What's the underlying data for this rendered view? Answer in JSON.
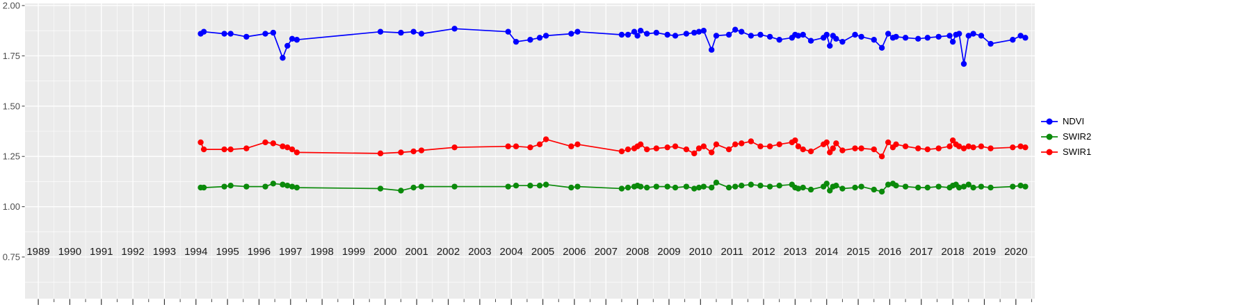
{
  "chart_data": {
    "type": "line",
    "title": "",
    "xlabel": "",
    "ylabel": "",
    "grid": true,
    "panel_bg": "#EBEBEB",
    "grid_color": "#FFFFFF",
    "tick_color": "#333333",
    "x_label_color": "#1a1a1a",
    "y_label_color": "#4d4d4d",
    "legend_position": "right",
    "xlim": [
      1988.58,
      2020.6
    ],
    "ylim": [
      0.5428,
      2.0104
    ],
    "x_ticks": [
      1989,
      1990,
      1991,
      1992,
      1993,
      1994,
      1995,
      1996,
      1997,
      1998,
      1999,
      2000,
      2001,
      2002,
      2003,
      2004,
      2005,
      2006,
      2007,
      2008,
      2009,
      2010,
      2011,
      2012,
      2013,
      2014,
      2015,
      2016,
      2017,
      2018,
      2019,
      2020
    ],
    "y_ticks": [
      {
        "v": 2.0,
        "label": "2.00"
      },
      {
        "v": 1.75,
        "label": "1.75"
      },
      {
        "v": 1.5,
        "label": "1.50"
      },
      {
        "v": 1.25,
        "label": "1.25"
      },
      {
        "v": 1.0,
        "label": "1.00"
      },
      {
        "v": 0.75,
        "label": "0.75"
      }
    ],
    "y_minor_ticks": [
      0.625,
      0.875,
      1.125,
      1.375,
      1.625,
      1.875
    ],
    "x": [
      1994.15,
      1994.25,
      1994.9,
      1995.1,
      1995.6,
      1996.2,
      1996.45,
      1996.75,
      1996.9,
      1997.05,
      1997.2,
      1999.85,
      2000.5,
      2000.9,
      2001.15,
      2002.2,
      2003.9,
      2004.15,
      2004.6,
      2004.9,
      2005.1,
      2005.9,
      2006.1,
      2007.5,
      2007.7,
      2007.9,
      2008.0,
      2008.1,
      2008.3,
      2008.6,
      2008.95,
      2009.2,
      2009.55,
      2009.8,
      2009.95,
      2010.1,
      2010.35,
      2010.5,
      2010.9,
      2011.1,
      2011.3,
      2011.6,
      2011.9,
      2012.2,
      2012.5,
      2012.9,
      2013.0,
      2013.1,
      2013.25,
      2013.5,
      2013.9,
      2014.0,
      2014.1,
      2014.2,
      2014.3,
      2014.5,
      2014.9,
      2015.1,
      2015.5,
      2015.75,
      2015.95,
      2016.1,
      2016.2,
      2016.5,
      2016.9,
      2017.2,
      2017.55,
      2017.9,
      2018.0,
      2018.1,
      2018.2,
      2018.35,
      2018.5,
      2018.65,
      2018.9,
      2019.2,
      2019.9,
      2020.15,
      2020.3
    ],
    "series": [
      {
        "name": "NDVI",
        "color": "#0000FF",
        "values": [
          1.86,
          1.87,
          1.86,
          1.86,
          1.845,
          1.86,
          1.865,
          1.74,
          1.8,
          1.835,
          1.83,
          1.87,
          1.865,
          1.87,
          1.86,
          1.885,
          1.87,
          1.82,
          1.83,
          1.84,
          1.85,
          1.86,
          1.87,
          1.855,
          1.855,
          1.87,
          1.85,
          1.875,
          1.86,
          1.865,
          1.855,
          1.85,
          1.86,
          1.865,
          1.87,
          1.875,
          1.78,
          1.85,
          1.855,
          1.88,
          1.87,
          1.85,
          1.855,
          1.845,
          1.83,
          1.84,
          1.855,
          1.85,
          1.855,
          1.825,
          1.84,
          1.855,
          1.8,
          1.85,
          1.835,
          1.82,
          1.855,
          1.845,
          1.83,
          1.79,
          1.86,
          1.84,
          1.845,
          1.84,
          1.835,
          1.84,
          1.845,
          1.85,
          1.82,
          1.855,
          1.86,
          1.71,
          1.85,
          1.86,
          1.85,
          1.81,
          1.83,
          1.85,
          1.84
        ]
      },
      {
        "name": "SWIR2",
        "color": "#0B8A0B",
        "values": [
          1.095,
          1.095,
          1.1,
          1.105,
          1.1,
          1.1,
          1.115,
          1.11,
          1.105,
          1.1,
          1.095,
          1.09,
          1.08,
          1.095,
          1.1,
          1.1,
          1.1,
          1.105,
          1.105,
          1.105,
          1.11,
          1.095,
          1.1,
          1.09,
          1.095,
          1.1,
          1.105,
          1.1,
          1.095,
          1.1,
          1.1,
          1.095,
          1.1,
          1.09,
          1.095,
          1.1,
          1.095,
          1.12,
          1.095,
          1.1,
          1.105,
          1.11,
          1.105,
          1.1,
          1.105,
          1.11,
          1.095,
          1.09,
          1.095,
          1.085,
          1.1,
          1.115,
          1.08,
          1.1,
          1.105,
          1.09,
          1.095,
          1.1,
          1.085,
          1.075,
          1.11,
          1.115,
          1.105,
          1.1,
          1.095,
          1.095,
          1.1,
          1.095,
          1.105,
          1.11,
          1.095,
          1.1,
          1.11,
          1.095,
          1.1,
          1.095,
          1.1,
          1.105,
          1.1
        ]
      },
      {
        "name": "SWIR1",
        "color": "#FF0000",
        "values": [
          1.32,
          1.285,
          1.285,
          1.285,
          1.29,
          1.32,
          1.315,
          1.3,
          1.295,
          1.285,
          1.27,
          1.265,
          1.27,
          1.275,
          1.28,
          1.295,
          1.3,
          1.3,
          1.295,
          1.31,
          1.335,
          1.3,
          1.31,
          1.275,
          1.285,
          1.29,
          1.3,
          1.31,
          1.285,
          1.29,
          1.295,
          1.3,
          1.285,
          1.265,
          1.29,
          1.3,
          1.27,
          1.31,
          1.285,
          1.31,
          1.315,
          1.325,
          1.3,
          1.3,
          1.31,
          1.32,
          1.33,
          1.3,
          1.285,
          1.275,
          1.31,
          1.32,
          1.27,
          1.29,
          1.315,
          1.28,
          1.29,
          1.29,
          1.285,
          1.25,
          1.32,
          1.295,
          1.31,
          1.3,
          1.29,
          1.285,
          1.29,
          1.3,
          1.33,
          1.31,
          1.3,
          1.29,
          1.3,
          1.295,
          1.3,
          1.29,
          1.295,
          1.3,
          1.295
        ]
      }
    ]
  }
}
